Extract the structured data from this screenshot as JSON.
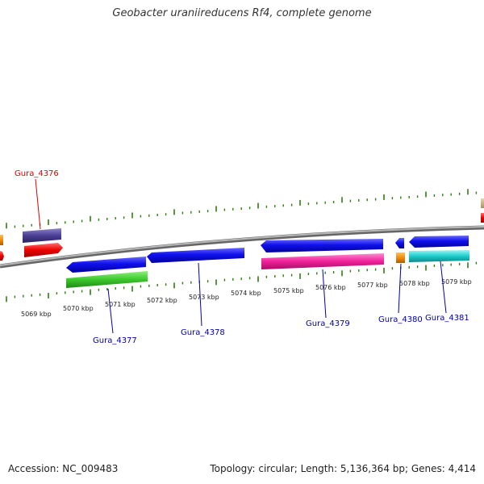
{
  "title": "Geobacter uraniireducens Rf4, complete genome",
  "footer": {
    "accession": "Accession: NC_009483",
    "summary": "Topology: circular; Length: 5,136,364 bp; Genes: 4,414"
  },
  "colors": {
    "backbone": "#8a8a8a",
    "ticks": "#2e7d10",
    "label_red": "#dd0000",
    "label_blue": "#0000aa"
  },
  "scale_labels": [
    "5069 kbp",
    "5070 kbp",
    "5071 kbp",
    "5072 kbp",
    "5073 kbp",
    "5074 kbp",
    "5075 kbp",
    "5076 kbp",
    "5077 kbp",
    "5078 kbp",
    "5079 kbp"
  ],
  "gene_labels": [
    {
      "text": "Gura_4376",
      "color": "#dd0000"
    },
    {
      "text": "Gura_4377",
      "color": "#0000aa"
    },
    {
      "text": "Gura_4378",
      "color": "#0000aa"
    },
    {
      "text": "Gura_4379",
      "color": "#0000aa"
    },
    {
      "text": "Gura_4380",
      "color": "#0000aa"
    },
    {
      "text": "Gura_4381",
      "color": "#0000aa"
    }
  ]
}
